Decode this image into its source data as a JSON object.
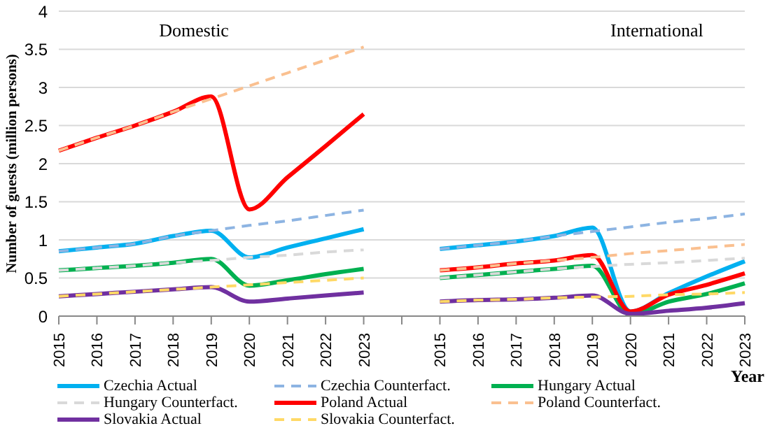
{
  "chart_data": {
    "type": "line",
    "ylabel": "Number of guests (million persons)",
    "xlabel": "Year",
    "annotations": [
      "Domestic",
      "International"
    ],
    "categories": [
      "2015",
      "2016",
      "2017",
      "2018",
      "2019",
      "2020",
      "2021",
      "2022",
      "2023",
      null,
      "2015",
      "2016",
      "2017",
      "2018",
      "2019",
      "2020",
      "2021",
      "2022",
      "2023"
    ],
    "ylim": [
      0,
      4
    ],
    "yticks": [
      0,
      0.5,
      1,
      1.5,
      2,
      2.5,
      3,
      3.5,
      4
    ],
    "grid": "y",
    "legend": "bottom",
    "marker": "none",
    "series": [
      {
        "name": "Czechia Actual",
        "color": "#00b0f0",
        "line_style": "solid",
        "values": [
          0.85,
          0.9,
          0.95,
          1.05,
          1.12,
          0.77,
          0.9,
          1.02,
          1.14,
          null,
          0.88,
          0.93,
          0.98,
          1.05,
          1.16,
          0.06,
          0.3,
          0.52,
          0.72
        ]
      },
      {
        "name": "Czechia Counterfact.",
        "color": "#8db4e2",
        "line_style": "dashed",
        "values": [
          0.85,
          0.9,
          0.95,
          1.05,
          1.12,
          1.19,
          1.25,
          1.32,
          1.39,
          null,
          0.88,
          0.93,
          0.98,
          1.05,
          1.11,
          1.17,
          1.23,
          1.28,
          1.34
        ]
      },
      {
        "name": "Hungary Actual",
        "color": "#00b050",
        "line_style": "solid",
        "values": [
          0.6,
          0.63,
          0.66,
          0.7,
          0.75,
          0.4,
          0.47,
          0.55,
          0.62,
          null,
          0.5,
          0.54,
          0.58,
          0.62,
          0.66,
          0.02,
          0.19,
          0.29,
          0.43
        ]
      },
      {
        "name": "Hungary Counterfact.",
        "color": "#d9d9d9",
        "line_style": "dashed",
        "values": [
          0.6,
          0.63,
          0.66,
          0.7,
          0.73,
          0.77,
          0.8,
          0.84,
          0.87,
          null,
          0.5,
          0.54,
          0.58,
          0.62,
          0.65,
          0.68,
          0.7,
          0.73,
          0.76
        ]
      },
      {
        "name": "Poland Actual",
        "color": "#ff0000",
        "line_style": "solid",
        "values": [
          2.17,
          2.34,
          2.5,
          2.68,
          2.88,
          1.4,
          1.82,
          2.23,
          2.65,
          null,
          0.6,
          0.64,
          0.69,
          0.73,
          0.8,
          0.06,
          0.28,
          0.41,
          0.56
        ]
      },
      {
        "name": "Poland Counterfact.",
        "color": "#fac090",
        "line_style": "dashed",
        "values": [
          2.17,
          2.34,
          2.5,
          2.68,
          2.85,
          3.02,
          3.19,
          3.36,
          3.53,
          null,
          0.6,
          0.64,
          0.69,
          0.73,
          0.77,
          0.82,
          0.86,
          0.9,
          0.94
        ]
      },
      {
        "name": "Slovakia Actual",
        "color": "#7030a0",
        "line_style": "solid",
        "values": [
          0.26,
          0.29,
          0.32,
          0.35,
          0.38,
          0.19,
          0.23,
          0.27,
          0.31,
          null,
          0.19,
          0.21,
          0.22,
          0.24,
          0.27,
          0.03,
          0.07,
          0.11,
          0.17
        ]
      },
      {
        "name": "Slovakia Counterfact.",
        "color": "#ffd966",
        "line_style": "dashed",
        "values": [
          0.26,
          0.29,
          0.32,
          0.35,
          0.38,
          0.41,
          0.44,
          0.47,
          0.5,
          null,
          0.19,
          0.21,
          0.22,
          0.24,
          0.25,
          0.26,
          0.28,
          0.29,
          0.31
        ]
      }
    ]
  }
}
